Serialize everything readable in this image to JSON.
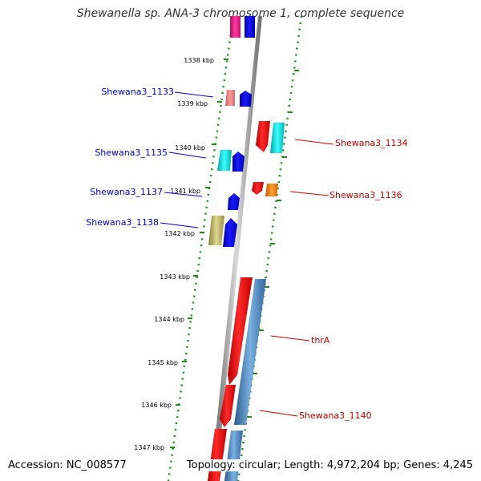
{
  "title": "Shewanella sp. ANA-3 chromosome 1, complete sequence",
  "accession": "Accession: NC_008577",
  "topology": "Topology: circular; Length: 4,972,204 bp; Genes: 4,245",
  "scale_labels": [
    "1338 kbp",
    "1339 kbp",
    "1340 kbp",
    "1341 kbp",
    "1342 kbp",
    "1343 kbp",
    "1344 kbp",
    "1345 kbp",
    "1346 kbp",
    "1347 kbp"
  ],
  "gene_labels": {
    "g1133": "Shewana3_1133",
    "g1134": "Shewana3_1134",
    "g1135": "Shewana3_1135",
    "g1136": "Shewana3_1136",
    "g1137": "Shewana3_1137",
    "g1138": "Shewana3_1138",
    "thrA": "thrA",
    "g1140": "Shewana3_1140"
  },
  "colors": {
    "left_label": "#0000cc",
    "right_label": "#cc0000",
    "dotted_border": "#1e8c1e",
    "backbone": "#8a8a8a"
  }
}
